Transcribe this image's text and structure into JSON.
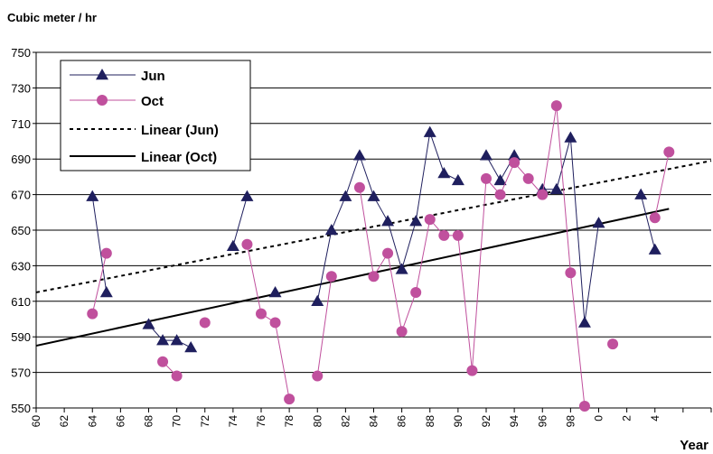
{
  "chart_data": {
    "type": "line",
    "title": "Cubic meter / hr",
    "xlabel": "Year",
    "ylabel": "Cubic meter / hr",
    "ylim": [
      550,
      750
    ],
    "yticks": [
      550,
      570,
      590,
      610,
      630,
      650,
      670,
      690,
      710,
      730,
      750
    ],
    "xlim": [
      1960,
      2008
    ],
    "xtick_values": [
      1960,
      1962,
      1964,
      1966,
      1968,
      1970,
      1972,
      1974,
      1976,
      1978,
      1980,
      1982,
      1984,
      1986,
      1988,
      1990,
      1992,
      1994,
      1996,
      1998,
      2000,
      2002,
      2004,
      2006,
      2008
    ],
    "xtick_labels": [
      "60",
      "62",
      "64",
      "66",
      "68",
      "70",
      "72",
      "74",
      "76",
      "78",
      "80",
      "82",
      "84",
      "86",
      "88",
      "90",
      "92",
      "94",
      "96",
      "98",
      "0",
      "2",
      "4",
      "",
      ""
    ],
    "grid": "horizontal",
    "legend_position": "top-left",
    "series": [
      {
        "name": "Jun",
        "color": "#1f1f5e",
        "marker": "triangle",
        "segments": [
          [
            [
              1964,
              669
            ],
            [
              1965,
              615
            ]
          ],
          [
            [
              1968,
              597
            ],
            [
              1969,
              588
            ],
            [
              1970,
              588
            ],
            [
              1971,
              584
            ]
          ],
          [
            [
              1974,
              641
            ],
            [
              1975,
              669
            ]
          ],
          [
            [
              1977,
              615
            ]
          ],
          [
            [
              1980,
              610
            ],
            [
              1981,
              650
            ],
            [
              1982,
              669
            ],
            [
              1983,
              692
            ],
            [
              1984,
              669
            ],
            [
              1985,
              655
            ],
            [
              1986,
              628
            ],
            [
              1987,
              655
            ],
            [
              1988,
              705
            ],
            [
              1989,
              682
            ],
            [
              1990,
              678
            ]
          ],
          [
            [
              1992,
              692
            ],
            [
              1993,
              678
            ],
            [
              1994,
              692
            ]
          ],
          [
            [
              1996,
              673
            ],
            [
              1997,
              673
            ],
            [
              1998,
              702
            ],
            [
              1999,
              598
            ],
            [
              2000,
              654
            ]
          ],
          [
            [
              2003,
              670
            ],
            [
              2004,
              639
            ]
          ]
        ]
      },
      {
        "name": "Oct",
        "color": "#c0509d",
        "marker": "circle",
        "segments": [
          [
            [
              1964,
              603
            ],
            [
              1965,
              637
            ]
          ],
          [
            [
              1969,
              576
            ],
            [
              1970,
              568
            ]
          ],
          [
            [
              1972,
              598
            ]
          ],
          [
            [
              1975,
              642
            ],
            [
              1976,
              603
            ],
            [
              1977,
              598
            ],
            [
              1978,
              555
            ]
          ],
          [
            [
              1980,
              568
            ],
            [
              1981,
              624
            ]
          ],
          [
            [
              1983,
              674
            ],
            [
              1984,
              624
            ],
            [
              1985,
              637
            ],
            [
              1986,
              593
            ],
            [
              1987,
              615
            ],
            [
              1988,
              656
            ],
            [
              1989,
              647
            ],
            [
              1990,
              647
            ],
            [
              1991,
              571
            ],
            [
              1992,
              679
            ],
            [
              1993,
              670
            ],
            [
              1994,
              688
            ],
            [
              1995,
              679
            ],
            [
              1996,
              670
            ],
            [
              1997,
              720
            ],
            [
              1998,
              626
            ],
            [
              1999,
              551
            ]
          ],
          [
            [
              2001,
              586
            ]
          ],
          [
            [
              2004,
              657
            ],
            [
              2005,
              694
            ]
          ]
        ]
      },
      {
        "name": "Linear (Jun)",
        "color": "#000000",
        "style": "dotted",
        "points": [
          [
            1960,
            615
          ],
          [
            2008,
            689
          ]
        ]
      },
      {
        "name": "Linear (Oct)",
        "color": "#000000",
        "style": "solid",
        "points": [
          [
            1960,
            585
          ],
          [
            2005,
            662
          ]
        ]
      }
    ]
  }
}
